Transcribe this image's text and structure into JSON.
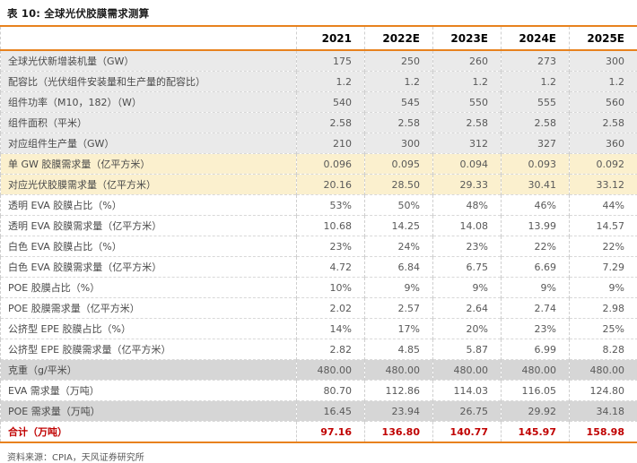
{
  "title": "表 10: 全球光伏胶膜需求测算",
  "table": {
    "columns": [
      "",
      "2021",
      "2022E",
      "2023E",
      "2024E",
      "2025E"
    ],
    "rows": [
      {
        "label": "全球光伏新增装机量（GW）",
        "values": [
          "175",
          "250",
          "260",
          "273",
          "300"
        ],
        "style": "gray"
      },
      {
        "label": "配容比（光伏组件安装量和生产量的配容比）",
        "values": [
          "1.2",
          "1.2",
          "1.2",
          "1.2",
          "1.2"
        ],
        "style": "gray"
      },
      {
        "label": "组件功率（M10，182）（W）",
        "values": [
          "540",
          "545",
          "550",
          "555",
          "560"
        ],
        "style": "gray"
      },
      {
        "label": "组件面积（平米）",
        "values": [
          "2.58",
          "2.58",
          "2.58",
          "2.58",
          "2.58"
        ],
        "style": "gray"
      },
      {
        "label": "对应组件生产量（GW）",
        "values": [
          "210",
          "300",
          "312",
          "327",
          "360"
        ],
        "style": "gray"
      },
      {
        "label": "单 GW 胶膜需求量（亿平方米）",
        "values": [
          "0.096",
          "0.095",
          "0.094",
          "0.093",
          "0.092"
        ],
        "style": "yellow"
      },
      {
        "label": "对应光伏胶膜需求量（亿平方米）",
        "values": [
          "20.16",
          "28.50",
          "29.33",
          "30.41",
          "33.12"
        ],
        "style": "yellow"
      },
      {
        "label": "透明 EVA 胶膜占比（%）",
        "values": [
          "53%",
          "50%",
          "48%",
          "46%",
          "44%"
        ],
        "style": "white"
      },
      {
        "label": "透明 EVA 胶膜需求量（亿平方米）",
        "values": [
          "10.68",
          "14.25",
          "14.08",
          "13.99",
          "14.57"
        ],
        "style": "white"
      },
      {
        "label": "白色 EVA 胶膜占比（%）",
        "values": [
          "23%",
          "24%",
          "23%",
          "22%",
          "22%"
        ],
        "style": "white"
      },
      {
        "label": "白色 EVA 胶膜需求量（亿平方米）",
        "values": [
          "4.72",
          "6.84",
          "6.75",
          "6.69",
          "7.29"
        ],
        "style": "white"
      },
      {
        "label": "POE 胶膜占比（%）",
        "values": [
          "10%",
          "9%",
          "9%",
          "9%",
          "9%"
        ],
        "style": "white"
      },
      {
        "label": "POE 胶膜需求量（亿平方米）",
        "values": [
          "2.02",
          "2.57",
          "2.64",
          "2.74",
          "2.98"
        ],
        "style": "white"
      },
      {
        "label": "公挤型 EPE 胶膜占比（%）",
        "values": [
          "14%",
          "17%",
          "20%",
          "23%",
          "25%"
        ],
        "style": "white"
      },
      {
        "label": "公挤型 EPE 胶膜需求量（亿平方米）",
        "values": [
          "2.82",
          "4.85",
          "5.87",
          "6.99",
          "8.28"
        ],
        "style": "white"
      },
      {
        "label": "克重（g/平米）",
        "values": [
          "480.00",
          "480.00",
          "480.00",
          "480.00",
          "480.00"
        ],
        "style": "darkgray"
      },
      {
        "label": "EVA 需求量（万吨）",
        "values": [
          "80.70",
          "112.86",
          "114.03",
          "116.05",
          "124.80"
        ],
        "style": "white"
      },
      {
        "label": "POE 需求量（万吨）",
        "values": [
          "16.45",
          "23.94",
          "26.75",
          "29.92",
          "34.18"
        ],
        "style": "darkgray"
      },
      {
        "label": "合计（万吨）",
        "values": [
          "97.16",
          "136.80",
          "140.77",
          "145.97",
          "158.98"
        ],
        "style": "total"
      }
    ]
  },
  "footer": {
    "source": "资料来源：CPIA，天风证券研究所"
  },
  "colors": {
    "accent_orange": "#E8821E",
    "highlight_yellow": "#FBF0CE",
    "row_gray": "#EAEAEA",
    "row_dark_gray": "#D6D6D6",
    "total_red": "#C00000",
    "text_gray": "#595959"
  }
}
